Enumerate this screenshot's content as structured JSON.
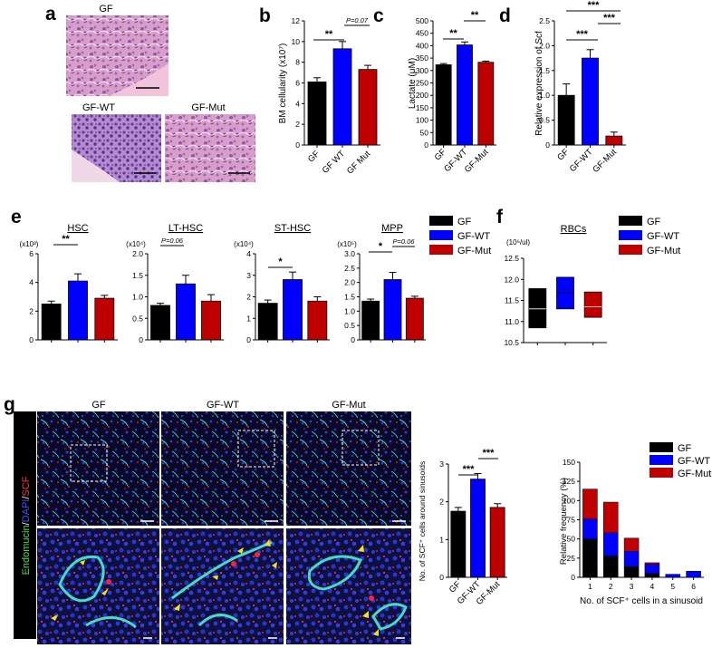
{
  "panels": {
    "a": "a",
    "b": "b",
    "c": "c",
    "d": "d",
    "e": "e",
    "f": "f",
    "g": "g"
  },
  "colors": {
    "GF": "#000000",
    "GF-WT": "#0000ff",
    "GF-Mut": "#bf0000",
    "sinusoid": "#44dcc8",
    "nuclei": "#2838d8",
    "scf": "#d82848",
    "arrow": "#f4e020"
  },
  "panel_a": {
    "labels": [
      "GF",
      "GF-WT",
      "GF-Mut"
    ]
  },
  "legend": [
    "GF",
    "GF-WT",
    "GF-Mut"
  ],
  "panel_g": {
    "columns": [
      "GF",
      "GF-WT",
      "GF-Mut"
    ],
    "side_label": {
      "endomucin": "Endomucin",
      "sep1": "/",
      "dapi": "DAPI",
      "sep2": "/",
      "scf": "SCF"
    }
  },
  "chart_data": [
    {
      "id": "b",
      "type": "bar",
      "categories": [
        "GF",
        "GF WT",
        "GF Mut"
      ],
      "values": [
        6.1,
        9.3,
        7.3
      ],
      "errors": [
        0.4,
        0.7,
        0.4
      ],
      "ylabel": "BM cellularity (x10⁷)",
      "ylim": [
        0,
        12
      ],
      "yticks": [
        0,
        2,
        4,
        6,
        8,
        10,
        12
      ],
      "annotations": [
        "**",
        "P=0.07"
      ]
    },
    {
      "id": "c",
      "type": "bar",
      "categories": [
        "GF",
        "GF-WT",
        "GF-Mut"
      ],
      "values": [
        323,
        403,
        333
      ],
      "errors": [
        5,
        12,
        5
      ],
      "ylabel": "Lactate (μM)",
      "ylim": [
        0,
        500
      ],
      "yticks": [
        0,
        50,
        100,
        150,
        200,
        250,
        300,
        350,
        400,
        450,
        500
      ],
      "annotations": [
        "**",
        "**"
      ]
    },
    {
      "id": "d",
      "type": "bar",
      "categories": [
        "GF",
        "GF-WT",
        "GF-Mut"
      ],
      "values": [
        1.0,
        1.75,
        0.18
      ],
      "errors": [
        0.23,
        0.17,
        0.08
      ],
      "ylabel": "Relative expression of Scf",
      "ylim": [
        0,
        2.5
      ],
      "yticks": [
        0,
        0.5,
        1.0,
        1.5,
        2.0,
        2.5
      ],
      "annotations": [
        "***",
        "***",
        "***"
      ]
    },
    {
      "id": "e1",
      "type": "bar",
      "title": "HSC",
      "scale": "(x10³)",
      "categories": [
        "GF",
        "GF-WT",
        "GF-Mut"
      ],
      "values": [
        2.5,
        4.1,
        2.9
      ],
      "errors": [
        0.2,
        0.5,
        0.2
      ],
      "ylim": [
        0,
        6
      ],
      "yticks": [
        0,
        2,
        4,
        6
      ],
      "annotations": [
        "**"
      ]
    },
    {
      "id": "e2",
      "type": "bar",
      "title": "LT-HSC",
      "scale": "(x10⁴)",
      "categories": [
        "GF",
        "GF-WT",
        "GF-Mut"
      ],
      "values": [
        0.8,
        1.3,
        0.9
      ],
      "errors": [
        0.05,
        0.2,
        0.15
      ],
      "ylim": [
        0,
        2.0
      ],
      "yticks": [
        0,
        0.5,
        1.0,
        1.5,
        2.0
      ],
      "annotations": [
        "P=0.06"
      ]
    },
    {
      "id": "e3",
      "type": "bar",
      "title": "ST-HSC",
      "scale": "(x10⁴)",
      "categories": [
        "GF",
        "GF-WT",
        "GF-Mut"
      ],
      "values": [
        1.7,
        2.8,
        1.8
      ],
      "errors": [
        0.15,
        0.35,
        0.2
      ],
      "ylim": [
        0,
        4
      ],
      "yticks": [
        0,
        1,
        2,
        3,
        4
      ],
      "annotations": [
        "*"
      ]
    },
    {
      "id": "e4",
      "type": "bar",
      "title": "MPP",
      "scale": "(x10⁵)",
      "categories": [
        "GF",
        "GF-WT",
        "GF-Mut"
      ],
      "values": [
        1.35,
        2.1,
        1.45
      ],
      "errors": [
        0.07,
        0.25,
        0.07
      ],
      "ylim": [
        0,
        3.0
      ],
      "yticks": [
        0,
        0.5,
        1.0,
        1.5,
        2.0,
        2.5,
        3.0
      ],
      "annotations": [
        "*",
        "P=0.06"
      ]
    },
    {
      "id": "f",
      "type": "box",
      "title": "RBCs",
      "scale": "(10⁶/ul)",
      "categories": [
        "GF",
        "GF-WT",
        "GF-Mut"
      ],
      "boxes": [
        {
          "low": 10.85,
          "median": 11.3,
          "high": 11.78
        },
        {
          "low": 11.3,
          "median": 11.68,
          "high": 12.05
        },
        {
          "low": 11.1,
          "median": 11.35,
          "high": 11.7
        }
      ],
      "ylim": [
        10.5,
        12.5
      ],
      "yticks": [
        10.5,
        11.0,
        11.5,
        12.0,
        12.5
      ]
    },
    {
      "id": "g1",
      "type": "bar",
      "categories": [
        "GF",
        "GF-WT",
        "GF-Mut"
      ],
      "values": [
        1.75,
        2.6,
        1.85
      ],
      "errors": [
        0.1,
        0.15,
        0.1
      ],
      "ylabel": "No. of SCF⁺ cells around sinusoids",
      "ylim": [
        0,
        3
      ],
      "yticks": [
        0,
        1,
        2,
        3
      ],
      "annotations": [
        "***",
        "***"
      ]
    },
    {
      "id": "g2",
      "type": "bar",
      "stacked": true,
      "categories": [
        "1",
        "2",
        "3",
        "4",
        "5",
        "6"
      ],
      "series": [
        {
          "name": "GF",
          "values": [
            50,
            28,
            14,
            5,
            0,
            0
          ]
        },
        {
          "name": "GF-WT",
          "values": [
            26,
            30,
            20,
            12,
            4,
            8
          ]
        },
        {
          "name": "GF-Mut",
          "values": [
            39,
            40,
            17,
            2,
            0,
            0
          ]
        }
      ],
      "ylabel": "Relative frequency (%)",
      "xlabel": "No. of SCF⁺ cells in a sinusoid",
      "ylim": [
        0,
        150
      ],
      "yticks": [
        0,
        25,
        50,
        75,
        100,
        125,
        150
      ]
    }
  ]
}
